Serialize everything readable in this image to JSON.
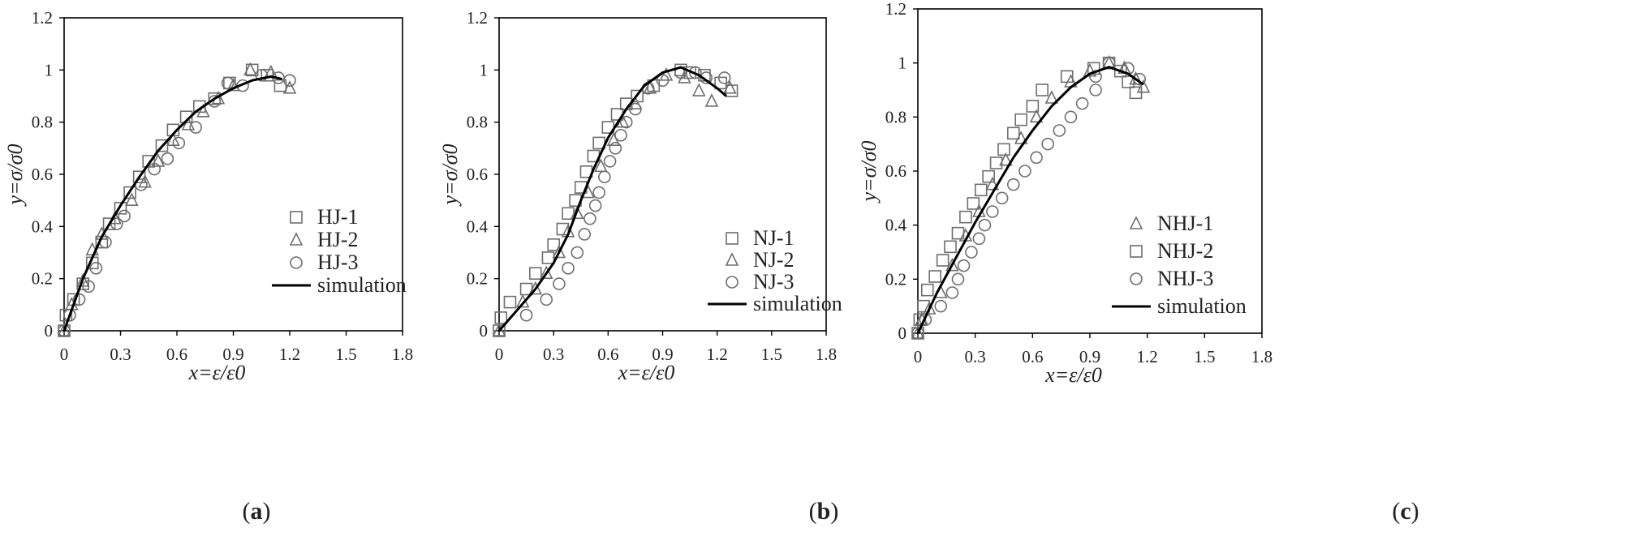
{
  "figure": {
    "panels": [
      {
        "label_open": "(",
        "label_letter": "a",
        "label_close": ")"
      },
      {
        "label_open": "(",
        "label_letter": "b",
        "label_close": ")"
      },
      {
        "label_open": "(",
        "label_letter": "c",
        "label_close": ")"
      }
    ]
  },
  "chart_data": [
    {
      "type": "scatter",
      "title": "",
      "xlabel": "x=ε/ε0",
      "ylabel": "y=σ/σ0",
      "xlim": [
        0,
        1.8
      ],
      "ylim": [
        0,
        1.2
      ],
      "x_ticks": [
        "0",
        "0.3",
        "0.6",
        "0.9",
        "1.2",
        "1.5",
        "1.8"
      ],
      "y_ticks": [
        "0",
        "0.2",
        "0.4",
        "0.6",
        "0.8",
        "1",
        "1.2"
      ],
      "grid": false,
      "legend_position": "bottom-right",
      "series": [
        {
          "name": "HJ-1",
          "marker": "square",
          "points": [
            [
              0,
              0
            ],
            [
              0.01,
              0.06
            ],
            [
              0.05,
              0.12
            ],
            [
              0.1,
              0.18
            ],
            [
              0.15,
              0.26
            ],
            [
              0.2,
              0.34
            ],
            [
              0.24,
              0.41
            ],
            [
              0.3,
              0.47
            ],
            [
              0.35,
              0.53
            ],
            [
              0.4,
              0.59
            ],
            [
              0.45,
              0.65
            ],
            [
              0.52,
              0.71
            ],
            [
              0.58,
              0.77
            ],
            [
              0.65,
              0.82
            ],
            [
              0.72,
              0.86
            ],
            [
              0.8,
              0.89
            ],
            [
              0.88,
              0.95
            ],
            [
              1.0,
              1.0
            ],
            [
              1.08,
              0.98
            ],
            [
              1.15,
              0.94
            ]
          ]
        },
        {
          "name": "HJ-2",
          "marker": "triangle",
          "points": [
            [
              0,
              0
            ],
            [
              0.04,
              0.1
            ],
            [
              0.1,
              0.19
            ],
            [
              0.15,
              0.31
            ],
            [
              0.2,
              0.37
            ],
            [
              0.27,
              0.43
            ],
            [
              0.36,
              0.5
            ],
            [
              0.43,
              0.57
            ],
            [
              0.5,
              0.65
            ],
            [
              0.58,
              0.73
            ],
            [
              0.66,
              0.79
            ],
            [
              0.74,
              0.84
            ],
            [
              0.82,
              0.89
            ],
            [
              0.9,
              0.94
            ],
            [
              0.99,
              1.0
            ],
            [
              1.1,
              0.99
            ],
            [
              1.2,
              0.93
            ]
          ]
        },
        {
          "name": "HJ-3",
          "marker": "circle",
          "points": [
            [
              0,
              0
            ],
            [
              0.03,
              0.06
            ],
            [
              0.08,
              0.12
            ],
            [
              0.13,
              0.17
            ],
            [
              0.17,
              0.24
            ],
            [
              0.22,
              0.34
            ],
            [
              0.28,
              0.41
            ],
            [
              0.32,
              0.44
            ],
            [
              0.41,
              0.56
            ],
            [
              0.48,
              0.62
            ],
            [
              0.55,
              0.66
            ],
            [
              0.61,
              0.72
            ],
            [
              0.7,
              0.78
            ],
            [
              0.8,
              0.88
            ],
            [
              0.87,
              0.95
            ],
            [
              0.95,
              0.94
            ],
            [
              1.05,
              0.98
            ],
            [
              1.14,
              0.97
            ],
            [
              1.2,
              0.96
            ]
          ]
        },
        {
          "name": "simulation",
          "type": "line",
          "points": [
            [
              0,
              0
            ],
            [
              0.1,
              0.2
            ],
            [
              0.2,
              0.36
            ],
            [
              0.3,
              0.48
            ],
            [
              0.4,
              0.59
            ],
            [
              0.5,
              0.69
            ],
            [
              0.6,
              0.77
            ],
            [
              0.7,
              0.84
            ],
            [
              0.8,
              0.89
            ],
            [
              0.9,
              0.93
            ],
            [
              1.0,
              0.96
            ],
            [
              1.1,
              0.975
            ],
            [
              1.16,
              0.965
            ]
          ]
        }
      ]
    },
    {
      "type": "scatter",
      "title": "",
      "xlabel": "x=ε/ε0",
      "ylabel": "y=σ/σ0",
      "xlim": [
        0,
        1.8
      ],
      "ylim": [
        0,
        1.2
      ],
      "x_ticks": [
        "0",
        "0.3",
        "0.6",
        "0.9",
        "1.2",
        "1.5",
        "1.8"
      ],
      "y_ticks": [
        "0",
        "0.2",
        "0.4",
        "0.6",
        "0.8",
        "1",
        "1.2"
      ],
      "grid": false,
      "legend_position": "bottom-right",
      "series": [
        {
          "name": "NJ-1",
          "marker": "square",
          "points": [
            [
              0,
              0
            ],
            [
              0.01,
              0.05
            ],
            [
              0.06,
              0.11
            ],
            [
              0.15,
              0.16
            ],
            [
              0.2,
              0.22
            ],
            [
              0.27,
              0.28
            ],
            [
              0.3,
              0.33
            ],
            [
              0.35,
              0.39
            ],
            [
              0.38,
              0.45
            ],
            [
              0.42,
              0.5
            ],
            [
              0.45,
              0.55
            ],
            [
              0.48,
              0.61
            ],
            [
              0.52,
              0.67
            ],
            [
              0.55,
              0.72
            ],
            [
              0.6,
              0.78
            ],
            [
              0.65,
              0.83
            ],
            [
              0.7,
              0.87
            ],
            [
              0.76,
              0.9
            ],
            [
              0.85,
              0.94
            ],
            [
              1.0,
              1.0
            ],
            [
              1.05,
              0.99
            ],
            [
              1.13,
              0.98
            ],
            [
              1.22,
              0.95
            ],
            [
              1.28,
              0.92
            ]
          ]
        },
        {
          "name": "NJ-2",
          "marker": "triangle",
          "points": [
            [
              0,
              0
            ],
            [
              0.13,
              0.11
            ],
            [
              0.2,
              0.16
            ],
            [
              0.26,
              0.22
            ],
            [
              0.33,
              0.3
            ],
            [
              0.38,
              0.38
            ],
            [
              0.43,
              0.45
            ],
            [
              0.49,
              0.53
            ],
            [
              0.56,
              0.63
            ],
            [
              0.63,
              0.73
            ],
            [
              0.68,
              0.8
            ],
            [
              0.75,
              0.87
            ],
            [
              0.83,
              0.93
            ],
            [
              0.92,
              0.98
            ],
            [
              1.02,
              0.97
            ],
            [
              1.1,
              0.92
            ],
            [
              1.17,
              0.88
            ],
            [
              1.27,
              0.93
            ]
          ]
        },
        {
          "name": "NJ-3",
          "marker": "circle",
          "points": [
            [
              0.15,
              0.06
            ],
            [
              0.26,
              0.12
            ],
            [
              0.33,
              0.18
            ],
            [
              0.38,
              0.24
            ],
            [
              0.43,
              0.3
            ],
            [
              0.47,
              0.37
            ],
            [
              0.5,
              0.43
            ],
            [
              0.53,
              0.48
            ],
            [
              0.55,
              0.53
            ],
            [
              0.58,
              0.59
            ],
            [
              0.61,
              0.65
            ],
            [
              0.64,
              0.7
            ],
            [
              0.67,
              0.75
            ],
            [
              0.7,
              0.8
            ],
            [
              0.75,
              0.85
            ],
            [
              0.82,
              0.93
            ],
            [
              0.9,
              0.96
            ],
            [
              1.0,
              0.99
            ],
            [
              1.08,
              0.99
            ],
            [
              1.14,
              0.97
            ],
            [
              1.24,
              0.97
            ]
          ]
        },
        {
          "name": "simulation",
          "type": "line",
          "points": [
            [
              0,
              0
            ],
            [
              0.1,
              0.08
            ],
            [
              0.2,
              0.16
            ],
            [
              0.3,
              0.26
            ],
            [
              0.38,
              0.37
            ],
            [
              0.45,
              0.5
            ],
            [
              0.52,
              0.62
            ],
            [
              0.6,
              0.74
            ],
            [
              0.7,
              0.85
            ],
            [
              0.8,
              0.94
            ],
            [
              0.9,
              0.99
            ],
            [
              1.0,
              1.01
            ],
            [
              1.1,
              0.98
            ],
            [
              1.2,
              0.93
            ],
            [
              1.25,
              0.9
            ]
          ]
        }
      ]
    },
    {
      "type": "scatter",
      "title": "",
      "xlabel": "x=ε/ε0",
      "ylabel": "y=σ/σ0",
      "xlim": [
        0,
        1.8
      ],
      "ylim": [
        0,
        1.2
      ],
      "x_ticks": [
        "0",
        "0.3",
        "0.6",
        "0.9",
        "1.2",
        "1.5",
        "1.8"
      ],
      "y_ticks": [
        "0",
        "0.2",
        "0.4",
        "0.6",
        "0.8",
        "1",
        "1.2"
      ],
      "grid": false,
      "legend_position": "bottom-right",
      "series": [
        {
          "name": "NHJ-1",
          "marker": "triangle",
          "points": [
            [
              0,
              0
            ],
            [
              0.02,
              0.05
            ],
            [
              0.06,
              0.09
            ],
            [
              0.12,
              0.15
            ],
            [
              0.18,
              0.25
            ],
            [
              0.25,
              0.36
            ],
            [
              0.32,
              0.45
            ],
            [
              0.39,
              0.55
            ],
            [
              0.46,
              0.64
            ],
            [
              0.54,
              0.72
            ],
            [
              0.62,
              0.8
            ],
            [
              0.7,
              0.87
            ],
            [
              0.8,
              0.93
            ],
            [
              0.9,
              0.97
            ],
            [
              1.0,
              1.0
            ],
            [
              1.08,
              0.98
            ],
            [
              1.14,
              0.94
            ],
            [
              1.18,
              0.91
            ]
          ]
        },
        {
          "name": "NHJ-2",
          "marker": "square",
          "points": [
            [
              0,
              0
            ],
            [
              0.01,
              0.05
            ],
            [
              0.03,
              0.1
            ],
            [
              0.05,
              0.16
            ],
            [
              0.09,
              0.21
            ],
            [
              0.13,
              0.27
            ],
            [
              0.17,
              0.32
            ],
            [
              0.21,
              0.37
            ],
            [
              0.25,
              0.43
            ],
            [
              0.29,
              0.48
            ],
            [
              0.33,
              0.53
            ],
            [
              0.37,
              0.58
            ],
            [
              0.41,
              0.63
            ],
            [
              0.45,
              0.68
            ],
            [
              0.5,
              0.74
            ],
            [
              0.54,
              0.79
            ],
            [
              0.6,
              0.84
            ],
            [
              0.65,
              0.9
            ],
            [
              0.78,
              0.95
            ],
            [
              0.92,
              0.98
            ],
            [
              1.0,
              1.0
            ],
            [
              1.06,
              0.97
            ],
            [
              1.1,
              0.93
            ],
            [
              1.14,
              0.89
            ]
          ]
        },
        {
          "name": "NHJ-3",
          "marker": "circle",
          "points": [
            [
              0,
              0
            ],
            [
              0.04,
              0.05
            ],
            [
              0.12,
              0.1
            ],
            [
              0.18,
              0.15
            ],
            [
              0.21,
              0.2
            ],
            [
              0.24,
              0.25
            ],
            [
              0.28,
              0.3
            ],
            [
              0.32,
              0.35
            ],
            [
              0.35,
              0.4
            ],
            [
              0.39,
              0.45
            ],
            [
              0.44,
              0.5
            ],
            [
              0.5,
              0.55
            ],
            [
              0.56,
              0.6
            ],
            [
              0.62,
              0.65
            ],
            [
              0.68,
              0.7
            ],
            [
              0.74,
              0.75
            ],
            [
              0.8,
              0.8
            ],
            [
              0.86,
              0.85
            ],
            [
              0.93,
              0.9
            ],
            [
              0.93,
              0.95
            ],
            [
              1.0,
              1.0
            ],
            [
              1.1,
              0.98
            ],
            [
              1.16,
              0.94
            ]
          ]
        },
        {
          "name": "simulation",
          "type": "line",
          "points": [
            [
              0,
              0
            ],
            [
              0.1,
              0.15
            ],
            [
              0.2,
              0.28
            ],
            [
              0.3,
              0.41
            ],
            [
              0.4,
              0.53
            ],
            [
              0.5,
              0.65
            ],
            [
              0.6,
              0.75
            ],
            [
              0.7,
              0.84
            ],
            [
              0.8,
              0.91
            ],
            [
              0.9,
              0.96
            ],
            [
              1.0,
              0.985
            ],
            [
              1.1,
              0.96
            ],
            [
              1.18,
              0.92
            ]
          ]
        }
      ]
    }
  ]
}
